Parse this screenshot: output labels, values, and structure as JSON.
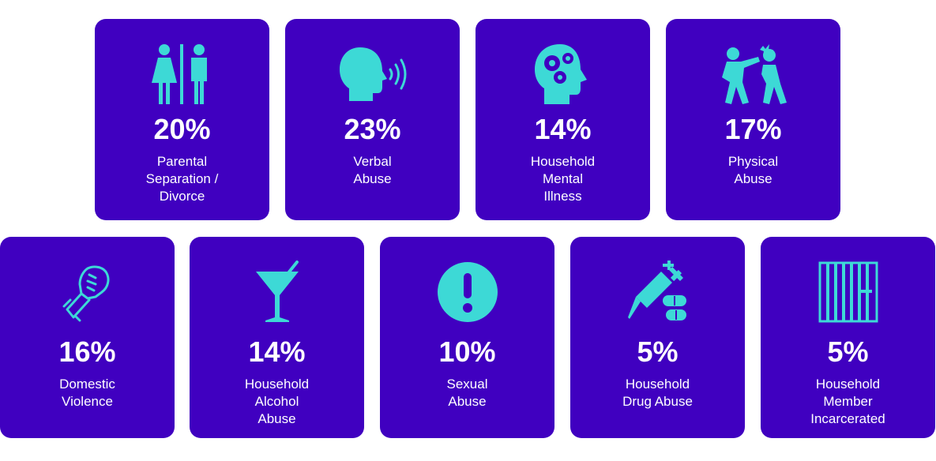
{
  "colors": {
    "tile_bg": "#4000c0",
    "icon": "#3dd9d6",
    "text": "#ffffff"
  },
  "tiles": [
    {
      "icon": "restroom-icon",
      "percent": "20%",
      "label": "Parental\nSeparation /\nDivorce"
    },
    {
      "icon": "speaking-head-icon",
      "percent": "23%",
      "label": "Verbal\nAbuse"
    },
    {
      "icon": "head-gears-icon",
      "percent": "14%",
      "label": "Household\nMental\nIllness"
    },
    {
      "icon": "fight-icon",
      "percent": "17%",
      "label": "Physical\nAbuse"
    },
    {
      "icon": "fist-icon",
      "percent": "16%",
      "label": "Domestic\nViolence"
    },
    {
      "icon": "cocktail-glass-icon",
      "percent": "14%",
      "label": "Household\nAlcohol\nAbuse"
    },
    {
      "icon": "exclamation-icon",
      "percent": "10%",
      "label": "Sexual\nAbuse"
    },
    {
      "icon": "syringe-pills-icon",
      "percent": "5%",
      "label": "Household\nDrug Abuse"
    },
    {
      "icon": "prison-bars-icon",
      "percent": "5%",
      "label": "Household\nMember\nIncarcerated"
    }
  ]
}
